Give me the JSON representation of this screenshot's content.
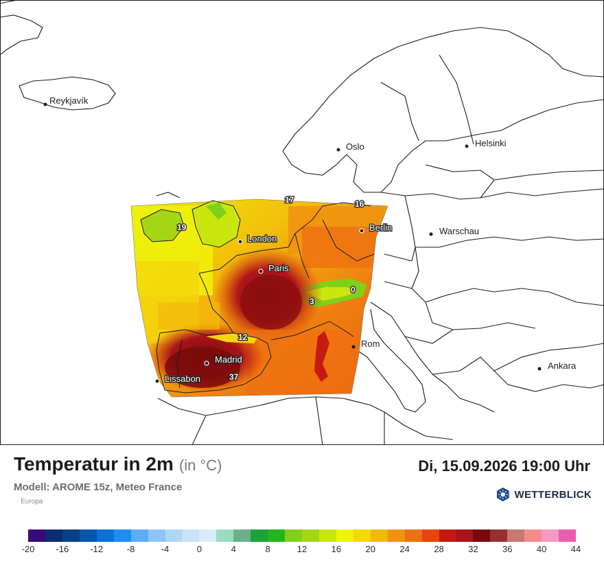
{
  "title": "Temperatur in 2m",
  "unit": "(in °C)",
  "datetime": "Di, 15.09.2026 19:00 Uhr",
  "model": "Modell: AROME 15z, Meteo France",
  "region": "· Europa",
  "logo_text": "WETTERBLICK",
  "cities_outside": [
    {
      "name": "Reykjavík"
    },
    {
      "name": "Oslo"
    },
    {
      "name": "Helsinki"
    },
    {
      "name": "Warschau"
    },
    {
      "name": "Ankara"
    },
    {
      "name": "Rom"
    }
  ],
  "cities_inside": [
    {
      "name": "Berlin"
    },
    {
      "name": "London"
    },
    {
      "name": "Paris"
    },
    {
      "name": "Madrid"
    },
    {
      "name": "Lissabon"
    }
  ],
  "value_labels": [
    "17",
    "16",
    "19",
    "0",
    "3",
    "12",
    "37"
  ],
  "scale": {
    "colors": [
      "#3a0a7a",
      "#0b2e6e",
      "#0a3f8a",
      "#0a55b0",
      "#0a6fd6",
      "#1b8ef0",
      "#5aaef5",
      "#8cc6f7",
      "#acd7f8",
      "#c6e3fa",
      "#d8ebfb",
      "#9bdcc0",
      "#6bb08a",
      "#1aa23a",
      "#23b51c",
      "#82cf1a",
      "#a4d614",
      "#c9e60e",
      "#eff20a",
      "#f5d60a",
      "#f3b80a",
      "#f19210",
      "#ef7010",
      "#e8440e",
      "#c41a12",
      "#a8141a",
      "#7a0a0a",
      "#963030",
      "#c8786e",
      "#f48a8a",
      "#f59ac0",
      "#ef5ab0"
    ],
    "ticks": [
      "-20",
      "-16",
      "-12",
      "-8",
      "-4",
      "0",
      "4",
      "8",
      "12",
      "16",
      "20",
      "24",
      "28",
      "32",
      "36",
      "40",
      "44"
    ]
  }
}
